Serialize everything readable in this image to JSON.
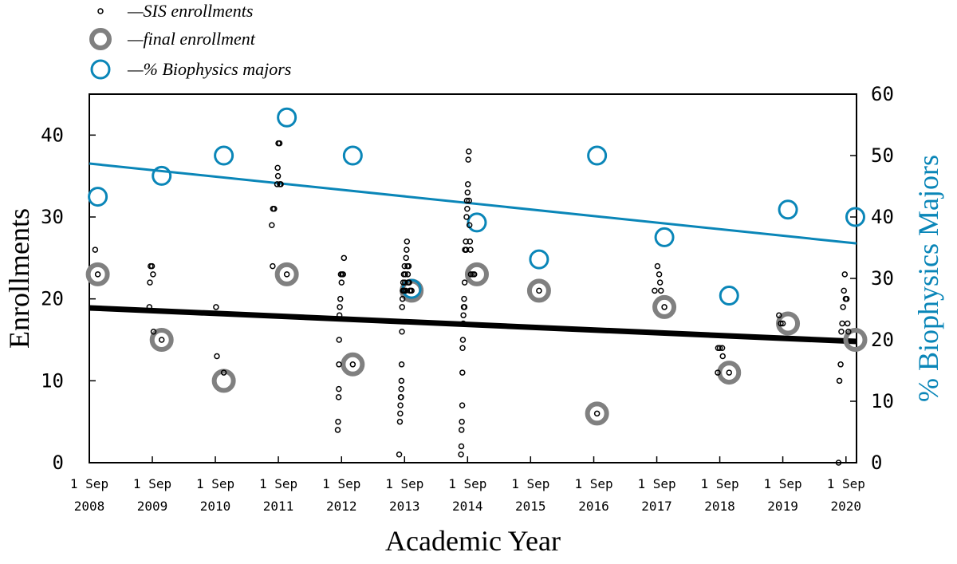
{
  "chart_data": {
    "type": "scatter",
    "xlabel": "Academic Year",
    "ylabel": "Enrollments",
    "y2label": "% Biophysics Majors",
    "ylim": [
      0,
      45
    ],
    "y2lim": [
      0,
      60
    ],
    "xlim": [
      "2008-09-01",
      "2020-11-01"
    ],
    "yticks": [
      "0",
      "10",
      "20",
      "30",
      "40"
    ],
    "y2ticks": [
      "0",
      "10",
      "20",
      "30",
      "40",
      "50",
      "60"
    ],
    "xticks": [
      {
        "date": "2008-09-01",
        "l1": "1 Sep",
        "l2": "2008"
      },
      {
        "date": "2009-09-01",
        "l1": "1 Sep",
        "l2": "2009"
      },
      {
        "date": "2010-09-01",
        "l1": "1 Sep",
        "l2": "2010"
      },
      {
        "date": "2011-09-01",
        "l1": "1 Sep",
        "l2": "2011"
      },
      {
        "date": "2012-09-01",
        "l1": "1 Sep",
        "l2": "2012"
      },
      {
        "date": "2013-09-01",
        "l1": "1 Sep",
        "l2": "2013"
      },
      {
        "date": "2014-09-01",
        "l1": "1 Sep",
        "l2": "2014"
      },
      {
        "date": "2015-09-01",
        "l1": "1 Sep",
        "l2": "2015"
      },
      {
        "date": "2016-09-01",
        "l1": "1 Sep",
        "l2": "2016"
      },
      {
        "date": "2017-09-01",
        "l1": "1 Sep",
        "l2": "2017"
      },
      {
        "date": "2018-09-01",
        "l1": "1 Sep",
        "l2": "2018"
      },
      {
        "date": "2019-09-01",
        "l1": "1 Sep",
        "l2": "2019"
      },
      {
        "date": "2020-09-01",
        "l1": "1 Sep",
        "l2": "2020"
      }
    ],
    "legend": [
      {
        "label": "—SIS enrollments",
        "marker": "small-circle"
      },
      {
        "label": "—final enrollment",
        "marker": "large-gray-ring"
      },
      {
        "label": "—% Biophysics majors",
        "marker": "blue-ring"
      }
    ],
    "legend_position": "top-left, above plot",
    "grid": false,
    "colors": {
      "sis": "#000000",
      "final": "#808080",
      "pct": "#0a86b8",
      "fit_enroll": "#000000",
      "fit_pct": "#0a86b8"
    },
    "series": [
      {
        "name": "SIS enrollments",
        "axis": "left",
        "points": [
          [
            "2008-10-05",
            26
          ],
          [
            "2008-10-20",
            23
          ],
          [
            "2009-08-15",
            19
          ],
          [
            "2009-08-18",
            22
          ],
          [
            "2009-08-22",
            24
          ],
          [
            "2009-08-30",
            24
          ],
          [
            "2009-09-05",
            23
          ],
          [
            "2009-09-08",
            16
          ],
          [
            "2009-10-25",
            15
          ],
          [
            "2010-09-05",
            19
          ],
          [
            "2010-09-10",
            13
          ],
          [
            "2010-10-20",
            11
          ],
          [
            "2011-07-25",
            29
          ],
          [
            "2011-07-30",
            24
          ],
          [
            "2011-08-01",
            31
          ],
          [
            "2011-08-08",
            31
          ],
          [
            "2011-08-25",
            34
          ],
          [
            "2011-08-28",
            36
          ],
          [
            "2011-08-30",
            35
          ],
          [
            "2011-09-01",
            39
          ],
          [
            "2011-09-08",
            39
          ],
          [
            "2011-09-10",
            34
          ],
          [
            "2011-09-15",
            34
          ],
          [
            "2011-10-20",
            23
          ],
          [
            "2012-08-10",
            4
          ],
          [
            "2012-08-12",
            5
          ],
          [
            "2012-08-15",
            8
          ],
          [
            "2012-08-16",
            9
          ],
          [
            "2012-08-17",
            12
          ],
          [
            "2012-08-18",
            15
          ],
          [
            "2012-08-20",
            18
          ],
          [
            "2012-08-22",
            19
          ],
          [
            "2012-08-25",
            20
          ],
          [
            "2012-08-28",
            23
          ],
          [
            "2012-09-01",
            22
          ],
          [
            "2012-09-05",
            23
          ],
          [
            "2012-09-10",
            23
          ],
          [
            "2012-09-15",
            25
          ],
          [
            "2012-11-05",
            12
          ],
          [
            "2013-08-01",
            1
          ],
          [
            "2013-08-05",
            5
          ],
          [
            "2013-08-07",
            6
          ],
          [
            "2013-08-08",
            7
          ],
          [
            "2013-08-10",
            8
          ],
          [
            "2013-08-12",
            8
          ],
          [
            "2013-08-13",
            9
          ],
          [
            "2013-08-14",
            10
          ],
          [
            "2013-08-15",
            12
          ],
          [
            "2013-08-17",
            16
          ],
          [
            "2013-08-18",
            19
          ],
          [
            "2013-08-20",
            20
          ],
          [
            "2013-08-22",
            21
          ],
          [
            "2013-08-24",
            22
          ],
          [
            "2013-08-26",
            21
          ],
          [
            "2013-08-28",
            23
          ],
          [
            "2013-08-30",
            21
          ],
          [
            "2013-09-01",
            24
          ],
          [
            "2013-09-03",
            22
          ],
          [
            "2013-09-05",
            23
          ],
          [
            "2013-09-08",
            21
          ],
          [
            "2013-09-10",
            25
          ],
          [
            "2013-09-13",
            26
          ],
          [
            "2013-09-15",
            27
          ],
          [
            "2013-09-18",
            24
          ],
          [
            "2013-09-20",
            23
          ],
          [
            "2013-09-22",
            22
          ],
          [
            "2013-09-25",
            24
          ],
          [
            "2013-09-28",
            22
          ],
          [
            "2013-10-01",
            21
          ],
          [
            "2013-10-05",
            21
          ],
          [
            "2013-10-12",
            21
          ],
          [
            "2014-07-25",
            1
          ],
          [
            "2014-07-27",
            2
          ],
          [
            "2014-07-28",
            4
          ],
          [
            "2014-07-30",
            5
          ],
          [
            "2014-08-01",
            7
          ],
          [
            "2014-08-02",
            11
          ],
          [
            "2014-08-03",
            14
          ],
          [
            "2014-08-05",
            15
          ],
          [
            "2014-08-07",
            17
          ],
          [
            "2014-08-08",
            18
          ],
          [
            "2014-08-10",
            19
          ],
          [
            "2014-08-12",
            20
          ],
          [
            "2014-08-14",
            19
          ],
          [
            "2014-08-15",
            22
          ],
          [
            "2014-08-17",
            26
          ],
          [
            "2014-08-20",
            26
          ],
          [
            "2014-08-22",
            27
          ],
          [
            "2014-08-24",
            26
          ],
          [
            "2014-08-26",
            30
          ],
          [
            "2014-08-28",
            32
          ],
          [
            "2014-08-30",
            31
          ],
          [
            "2014-09-01",
            33
          ],
          [
            "2014-09-03",
            34
          ],
          [
            "2014-09-05",
            37
          ],
          [
            "2014-09-08",
            38
          ],
          [
            "2014-09-10",
            32
          ],
          [
            "2014-09-12",
            29
          ],
          [
            "2014-09-15",
            27
          ],
          [
            "2014-09-18",
            26
          ],
          [
            "2014-09-20",
            23
          ],
          [
            "2014-10-01",
            23
          ],
          [
            "2014-10-10",
            23
          ],
          [
            "2015-10-20",
            21
          ],
          [
            "2016-09-20",
            6
          ],
          [
            "2017-08-20",
            21
          ],
          [
            "2017-09-05",
            24
          ],
          [
            "2017-09-15",
            23
          ],
          [
            "2017-09-20",
            22
          ],
          [
            "2017-09-25",
            21
          ],
          [
            "2017-10-15",
            19
          ],
          [
            "2018-08-20",
            11
          ],
          [
            "2018-08-22",
            14
          ],
          [
            "2018-09-01",
            14
          ],
          [
            "2018-09-15",
            14
          ],
          [
            "2018-09-18",
            13
          ],
          [
            "2018-10-25",
            11
          ],
          [
            "2019-08-10",
            18
          ],
          [
            "2019-08-20",
            17
          ],
          [
            "2019-09-01",
            17
          ],
          [
            "2020-07-20",
            0
          ],
          [
            "2020-07-25",
            10
          ],
          [
            "2020-08-01",
            12
          ],
          [
            "2020-08-05",
            16
          ],
          [
            "2020-08-10",
            17
          ],
          [
            "2020-08-15",
            19
          ],
          [
            "2020-08-20",
            21
          ],
          [
            "2020-08-25",
            23
          ],
          [
            "2020-08-30",
            20
          ],
          [
            "2020-09-05",
            20
          ],
          [
            "2020-09-10",
            17
          ],
          [
            "2020-09-15",
            16
          ]
        ]
      },
      {
        "name": "final enrollment",
        "axis": "left",
        "points": [
          [
            "2008-10-20",
            23
          ],
          [
            "2009-10-25",
            15
          ],
          [
            "2010-10-20",
            10
          ],
          [
            "2011-10-20",
            23
          ],
          [
            "2012-11-05",
            12
          ],
          [
            "2013-10-12",
            21
          ],
          [
            "2014-10-25",
            23
          ],
          [
            "2015-10-20",
            21
          ],
          [
            "2016-09-20",
            6
          ],
          [
            "2017-10-15",
            19
          ],
          [
            "2018-10-25",
            11
          ],
          [
            "2019-10-01",
            17
          ],
          [
            "2020-10-25",
            15
          ]
        ]
      },
      {
        "name": "% Biophysics majors",
        "axis": "right",
        "points": [
          [
            "2008-10-20",
            43.3
          ],
          [
            "2009-10-25",
            46.7
          ],
          [
            "2010-10-20",
            50
          ],
          [
            "2011-10-20",
            56.2
          ],
          [
            "2012-11-05",
            50
          ],
          [
            "2013-10-12",
            28.3
          ],
          [
            "2014-10-25",
            39.1
          ],
          [
            "2015-10-20",
            33.1
          ],
          [
            "2016-09-20",
            50
          ],
          [
            "2017-10-15",
            36.7
          ],
          [
            "2018-10-25",
            27.2
          ],
          [
            "2019-10-01",
            41.2
          ],
          [
            "2020-10-25",
            40
          ]
        ]
      }
    ],
    "fits": [
      {
        "series": "final enrollment",
        "axis": "left",
        "from": [
          "2008-09-01",
          18.9
        ],
        "to": [
          "2020-11-01",
          14.8
        ]
      },
      {
        "series": "% Biophysics majors",
        "axis": "right",
        "from": [
          "2008-09-01",
          48.7
        ],
        "to": [
          "2020-11-01",
          35.7
        ]
      }
    ]
  }
}
